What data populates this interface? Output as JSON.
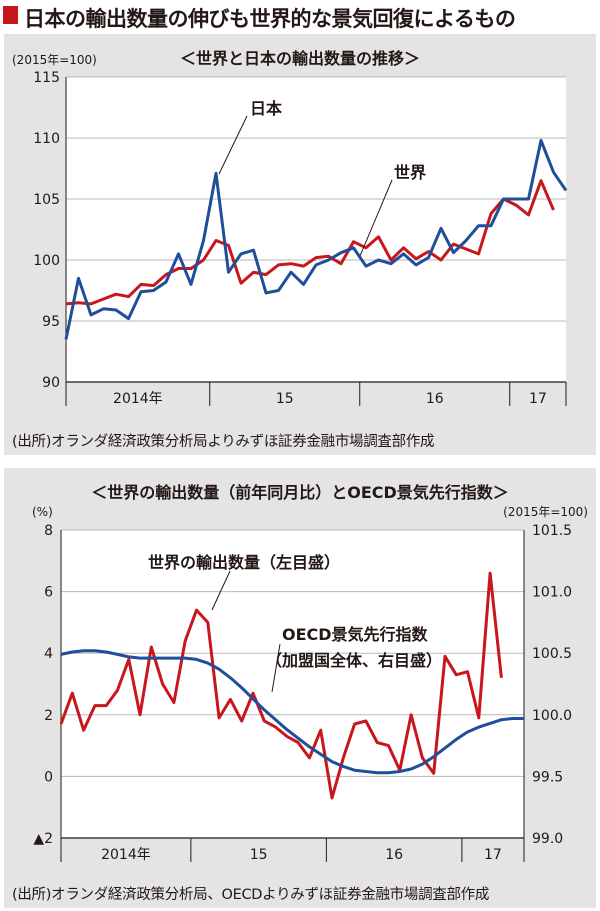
{
  "title": "日本の輸出数量の伸びも世界的な景気回復によるもの",
  "colors": {
    "japan": "#1f4e9a",
    "world": "#c8161d",
    "oecd": "#1f4e9a",
    "accent": "#c8161d",
    "panel_bg": "#e4e4e4"
  },
  "chart_data": [
    {
      "type": "line",
      "title": "＜世界と日本の輸出数量の推移＞",
      "unit_label": "(2015年=100)",
      "ylim": [
        90,
        115
      ],
      "yticks": [
        90,
        95,
        100,
        105,
        110,
        115
      ],
      "grid": true,
      "x_period_labels": [
        "2014年",
        "15",
        "16",
        "17"
      ],
      "x_start": "2014-01",
      "series": [
        {
          "name": "日本",
          "color": "#1f4e9a",
          "values": [
            93.5,
            98.5,
            95.5,
            96.0,
            95.9,
            95.2,
            97.4,
            97.5,
            98.2,
            100.5,
            98.0,
            101.6,
            107.1,
            99.0,
            100.5,
            100.8,
            97.3,
            97.5,
            99.0,
            98.0,
            99.6,
            100.0,
            100.6,
            101.0,
            99.5,
            100.0,
            99.7,
            100.5,
            99.6,
            100.2,
            102.6,
            100.6,
            101.6,
            102.8,
            102.8,
            105.0,
            105.0,
            105.0,
            109.8,
            107.2,
            105.7
          ]
        },
        {
          "name": "世界",
          "color": "#c8161d",
          "values": [
            96.4,
            96.5,
            96.4,
            96.8,
            97.2,
            97.0,
            98.0,
            97.9,
            98.8,
            99.3,
            99.3,
            100.0,
            101.6,
            101.2,
            98.1,
            99.0,
            98.8,
            99.6,
            99.7,
            99.5,
            100.2,
            100.3,
            99.7,
            101.5,
            101.0,
            101.9,
            100.0,
            101.0,
            100.1,
            100.7,
            100.0,
            101.3,
            100.9,
            100.5,
            103.8,
            105.0,
            104.5,
            103.7,
            106.5,
            104.1
          ]
        }
      ],
      "annotations": [
        "日本",
        "世界"
      ],
      "source": "(出所)オランダ経済政策分析局よりみずほ証券金融市場調査部作成"
    },
    {
      "type": "line",
      "title": "＜世界の輸出数量（前年同月比）とOECD景気先行指数＞",
      "left_unit": "(%)",
      "right_unit": "(2015年=100)",
      "ylim_left": [
        -2,
        8
      ],
      "yticks_left": [
        -2,
        0,
        2,
        4,
        6,
        8
      ],
      "ytick_labels_left": [
        "▲2",
        "0",
        "2",
        "4",
        "6",
        "8"
      ],
      "ylim_right": [
        99.0,
        101.5
      ],
      "yticks_right": [
        99.0,
        99.5,
        100.0,
        100.5,
        101.0,
        101.5
      ],
      "ytick_labels_right": [
        "99.0",
        "99.5",
        "100.0",
        "100.5",
        "101.0",
        "101.5"
      ],
      "grid": true,
      "x_period_labels": [
        "2014年",
        "15",
        "16",
        "17"
      ],
      "x_start": "2014-01",
      "series": [
        {
          "name": "世界の輸出数量（左目盛）",
          "axis": "left",
          "color": "#c8161d",
          "values": [
            1.7,
            2.7,
            1.5,
            2.3,
            2.3,
            2.8,
            3.8,
            2.0,
            4.2,
            3.0,
            2.4,
            4.4,
            5.4,
            5.0,
            1.9,
            2.5,
            1.8,
            2.7,
            1.8,
            1.6,
            1.3,
            1.1,
            0.6,
            1.5,
            -0.7,
            0.6,
            1.7,
            1.8,
            1.1,
            1.0,
            0.2,
            2.0,
            0.6,
            0.1,
            3.9,
            3.3,
            3.4,
            1.9,
            6.6,
            3.2
          ]
        },
        {
          "name": "OECD景気先行指数（加盟国全体、右目盛）",
          "axis": "right",
          "color": "#1f4e9a",
          "values": [
            100.49,
            100.51,
            100.52,
            100.52,
            100.51,
            100.49,
            100.47,
            100.46,
            100.46,
            100.46,
            100.46,
            100.46,
            100.45,
            100.42,
            100.37,
            100.3,
            100.22,
            100.13,
            100.04,
            99.96,
            99.88,
            99.81,
            99.74,
            99.68,
            99.62,
            99.58,
            99.55,
            99.54,
            99.53,
            99.53,
            99.54,
            99.56,
            99.6,
            99.66,
            99.73,
            99.8,
            99.86,
            99.9,
            99.93,
            99.96,
            99.97,
            99.97
          ]
        }
      ],
      "annotations": [
        "世界の輸出数量（左目盛）",
        "OECD景気先行指数",
        "（加盟国全体、右目盛）"
      ],
      "source": "(出所)オランダ経済政策分析局、OECDよりみずほ証券金融市場調査部作成"
    }
  ]
}
